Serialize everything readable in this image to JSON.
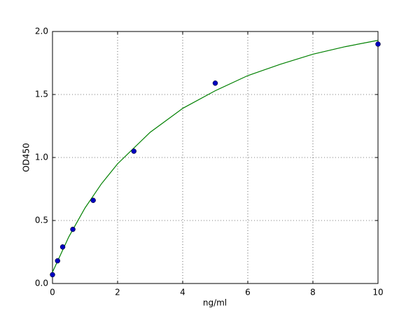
{
  "chart_data": {
    "type": "scatter",
    "xlabel": "ng/ml",
    "ylabel": "OD450",
    "xlim": [
      0,
      10
    ],
    "ylim": [
      0,
      2
    ],
    "xticks": [
      0,
      2,
      4,
      6,
      8,
      10
    ],
    "yticks": [
      {
        "value": 0,
        "label": "0.0"
      },
      {
        "value": 0.5,
        "label": "0.5"
      },
      {
        "value": 1,
        "label": "1.0"
      },
      {
        "value": 1.5,
        "label": "1.5"
      },
      {
        "value": 2,
        "label": "2.0"
      }
    ],
    "grid": true,
    "series": [
      {
        "mode": "markers",
        "color": "#0000bf",
        "x": [
          0,
          0.156,
          0.3125,
          0.625,
          1.25,
          2.5,
          5,
          10
        ],
        "values": [
          0.07,
          0.18,
          0.29,
          0.43,
          0.66,
          1.05,
          1.59,
          1.9
        ]
      },
      {
        "mode": "line",
        "color": "#008000",
        "x": [
          0,
          0.5,
          1,
          1.5,
          2,
          3,
          4,
          5,
          6,
          7,
          8,
          9,
          10
        ],
        "values": [
          0.09,
          0.37,
          0.6,
          0.79,
          0.95,
          1.2,
          1.39,
          1.53,
          1.65,
          1.74,
          1.82,
          1.88,
          1.93
        ]
      }
    ]
  }
}
